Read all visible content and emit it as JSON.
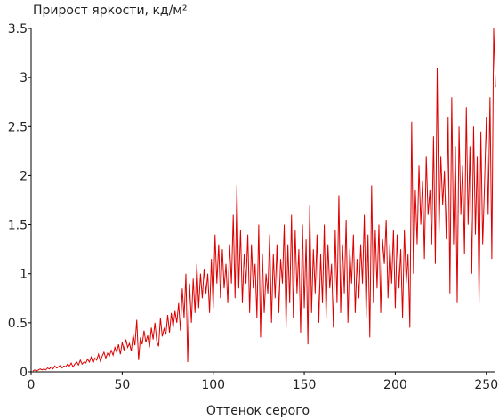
{
  "chart_data": {
    "type": "line",
    "title": "Прирост яркости, кд/м²",
    "x_label": "Оттенок серого",
    "x": [
      1,
      2,
      3,
      4,
      5,
      6,
      7,
      8,
      9,
      10,
      11,
      12,
      13,
      14,
      15,
      16,
      17,
      18,
      19,
      20,
      21,
      22,
      23,
      24,
      25,
      26,
      27,
      28,
      29,
      30,
      31,
      32,
      33,
      34,
      35,
      36,
      37,
      38,
      39,
      40,
      41,
      42,
      43,
      44,
      45,
      46,
      47,
      48,
      49,
      50,
      51,
      52,
      53,
      54,
      55,
      56,
      57,
      58,
      59,
      60,
      61,
      62,
      63,
      64,
      65,
      66,
      67,
      68,
      69,
      70,
      71,
      72,
      73,
      74,
      75,
      76,
      77,
      78,
      79,
      80,
      81,
      82,
      83,
      84,
      85,
      86,
      87,
      88,
      89,
      90,
      91,
      92,
      93,
      94,
      95,
      96,
      97,
      98,
      99,
      100,
      101,
      102,
      103,
      104,
      105,
      106,
      107,
      108,
      109,
      110,
      111,
      112,
      113,
      114,
      115,
      116,
      117,
      118,
      119,
      120,
      121,
      122,
      123,
      124,
      125,
      126,
      127,
      128,
      129,
      130,
      131,
      132,
      133,
      134,
      135,
      136,
      137,
      138,
      139,
      140,
      141,
      142,
      143,
      144,
      145,
      146,
      147,
      148,
      149,
      150,
      151,
      152,
      153,
      154,
      155,
      156,
      157,
      158,
      159,
      160,
      161,
      162,
      163,
      164,
      165,
      166,
      167,
      168,
      169,
      170,
      171,
      172,
      173,
      174,
      175,
      176,
      177,
      178,
      179,
      180,
      181,
      182,
      183,
      184,
      185,
      186,
      187,
      188,
      189,
      190,
      191,
      192,
      193,
      194,
      195,
      196,
      197,
      198,
      199,
      200,
      201,
      202,
      203,
      204,
      205,
      206,
      207,
      208,
      209,
      210,
      211,
      212,
      213,
      214,
      215,
      216,
      217,
      218,
      219,
      220,
      221,
      222,
      223,
      224,
      225,
      226,
      227,
      228,
      229,
      230,
      231,
      232,
      233,
      234,
      235,
      236,
      237,
      238,
      239,
      240,
      241,
      242,
      243,
      244,
      245,
      246,
      247,
      248,
      249,
      250,
      251,
      252,
      253,
      254,
      255
    ],
    "values": [
      0.01,
      0.02,
      0.01,
      0.02,
      0.03,
      0.02,
      0.03,
      0.02,
      0.04,
      0.03,
      0.05,
      0.03,
      0.06,
      0.04,
      0.05,
      0.07,
      0.04,
      0.06,
      0.05,
      0.08,
      0.06,
      0.09,
      0.05,
      0.08,
      0.1,
      0.07,
      0.12,
      0.08,
      0.1,
      0.09,
      0.13,
      0.1,
      0.15,
      0.09,
      0.14,
      0.12,
      0.18,
      0.11,
      0.16,
      0.2,
      0.14,
      0.19,
      0.16,
      0.22,
      0.17,
      0.25,
      0.2,
      0.28,
      0.18,
      0.3,
      0.22,
      0.33,
      0.25,
      0.29,
      0.21,
      0.38,
      0.27,
      0.53,
      0.12,
      0.35,
      0.28,
      0.42,
      0.3,
      0.37,
      0.25,
      0.45,
      0.33,
      0.5,
      0.31,
      0.26,
      0.55,
      0.36,
      0.44,
      0.38,
      0.58,
      0.4,
      0.6,
      0.45,
      0.62,
      0.5,
      0.7,
      0.42,
      0.85,
      0.55,
      1.0,
      0.1,
      0.9,
      0.5,
      0.95,
      0.6,
      1.1,
      0.65,
      1.0,
      0.75,
      1.05,
      0.8,
      1.0,
      0.6,
      1.15,
      0.65,
      1.4,
      0.9,
      1.3,
      0.75,
      1.25,
      0.85,
      1.1,
      0.7,
      1.3,
      0.9,
      1.6,
      0.75,
      1.9,
      0.85,
      1.45,
      0.7,
      1.2,
      0.9,
      1.4,
      0.6,
      1.3,
      0.85,
      1.1,
      0.55,
      1.5,
      0.35,
      1.2,
      0.6,
      1.0,
      0.8,
      1.4,
      0.5,
      1.2,
      0.75,
      1.3,
      0.6,
      1.15,
      0.9,
      1.5,
      0.45,
      1.3,
      0.7,
      1.6,
      0.55,
      1.45,
      0.8,
      1.25,
      0.4,
      1.5,
      0.65,
      1.35,
      0.28,
      1.7,
      0.6,
      1.25,
      0.8,
      1.4,
      0.5,
      1.2,
      0.7,
      1.5,
      0.55,
      1.3,
      0.85,
      1.1,
      0.45,
      1.45,
      0.7,
      1.8,
      0.6,
      1.3,
      0.8,
      1.55,
      0.5,
      1.25,
      0.9,
      1.4,
      0.6,
      1.15,
      0.75,
      1.3,
      0.9,
      1.6,
      0.55,
      1.4,
      0.35,
      1.9,
      0.7,
      1.45,
      0.85,
      1.5,
      0.6,
      1.35,
      1.1,
      1.55,
      0.75,
      1.3,
      0.9,
      1.45,
      0.65,
      1.4,
      0.85,
      1.25,
      0.55,
      1.45,
      0.9,
      1.2,
      0.45,
      2.55,
      1.0,
      1.85,
      1.3,
      2.1,
      1.5,
      1.95,
      1.15,
      2.2,
      1.6,
      1.85,
      1.3,
      2.4,
      1.1,
      3.1,
      1.4,
      2.2,
      1.7,
      2.05,
      1.35,
      2.6,
      0.8,
      2.8,
      1.3,
      2.3,
      0.7,
      2.5,
      1.6,
      2.1,
      1.2,
      2.7,
      1.5,
      2.3,
      1.0,
      2.5,
      1.4,
      2.2,
      0.7,
      2.45,
      1.3,
      1.9,
      2.6,
      1.6,
      2.8,
      1.15,
      3.5,
      2.9
    ],
    "color": "#dd0000",
    "xlim": [
      0,
      255
    ],
    "xticks": [
      0,
      50,
      100,
      150,
      200,
      250
    ],
    "ylim": [
      0,
      3.5
    ],
    "yticks": [
      0,
      0.5,
      1,
      1.5,
      2,
      2.5,
      3,
      3.5
    ]
  }
}
